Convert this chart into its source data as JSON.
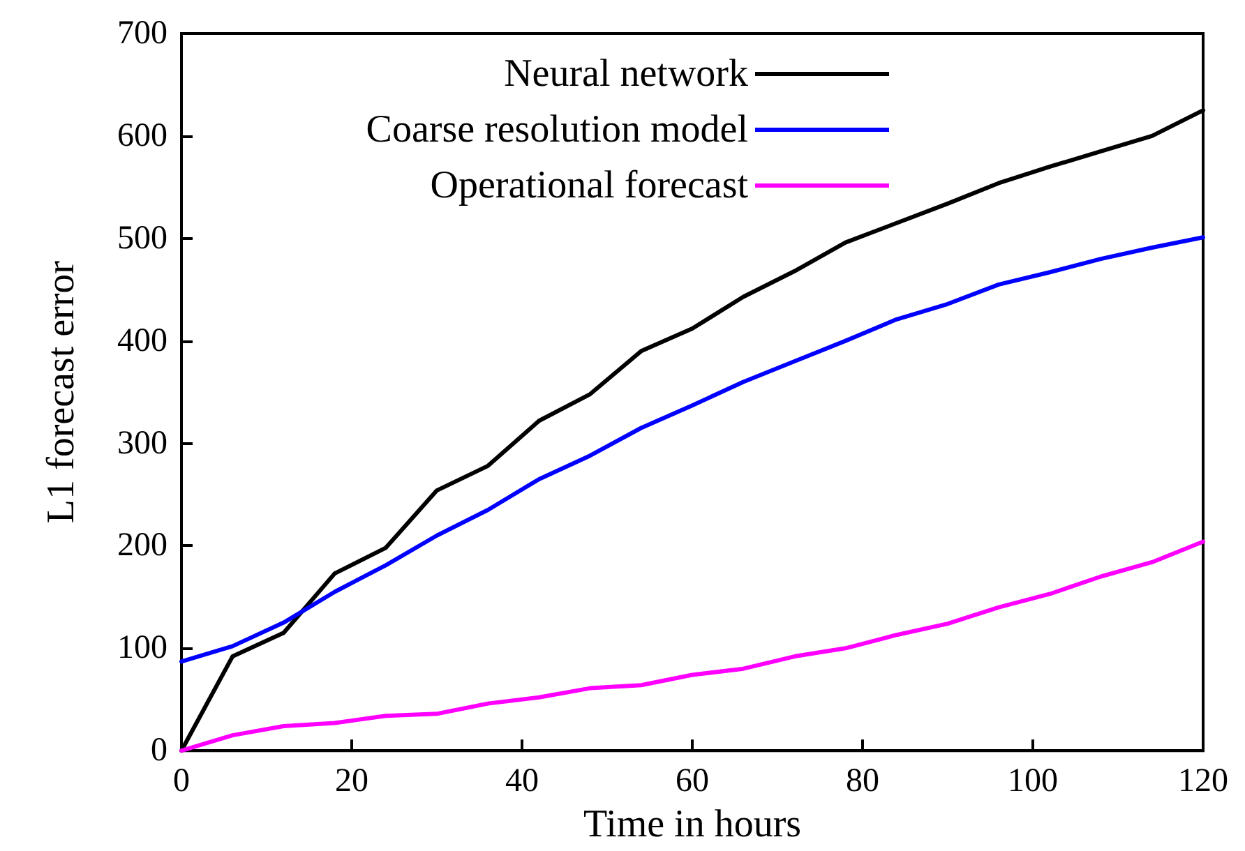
{
  "chart_data": {
    "type": "line",
    "xlabel": "Time in hours",
    "ylabel": "L1 forecast error",
    "x": [
      0,
      6,
      12,
      18,
      24,
      30,
      36,
      42,
      48,
      54,
      60,
      66,
      72,
      78,
      84,
      90,
      96,
      102,
      108,
      114,
      120
    ],
    "series": [
      {
        "name": "Neural network",
        "color": "#000000",
        "values": [
          0,
          92,
          115,
          173,
          198,
          254,
          278,
          322,
          348,
          390,
          412,
          443,
          468,
          496,
          515,
          534,
          554,
          570,
          585,
          600,
          625
        ]
      },
      {
        "name": "Coarse resolution model",
        "color": "#0000ff",
        "values": [
          87,
          102,
          125,
          155,
          181,
          210,
          235,
          265,
          288,
          315,
          337,
          360,
          380,
          400,
          421,
          436,
          455,
          467,
          480,
          491,
          501
        ]
      },
      {
        "name": "Operational forecast",
        "color": "#ff00ff",
        "values": [
          0,
          15,
          24,
          27,
          34,
          36,
          46,
          52,
          61,
          64,
          74,
          80,
          92,
          100,
          113,
          124,
          140,
          153,
          170,
          184,
          204
        ]
      }
    ],
    "xlim": [
      0,
      120
    ],
    "xticks": [
      0,
      20,
      40,
      60,
      80,
      100,
      120
    ],
    "ylim": [
      0,
      700
    ],
    "yticks": [
      0,
      100,
      200,
      300,
      400,
      500,
      600,
      700
    ],
    "grid": false,
    "legend": "top left",
    "marker": "none",
    "line_style": "solid"
  }
}
